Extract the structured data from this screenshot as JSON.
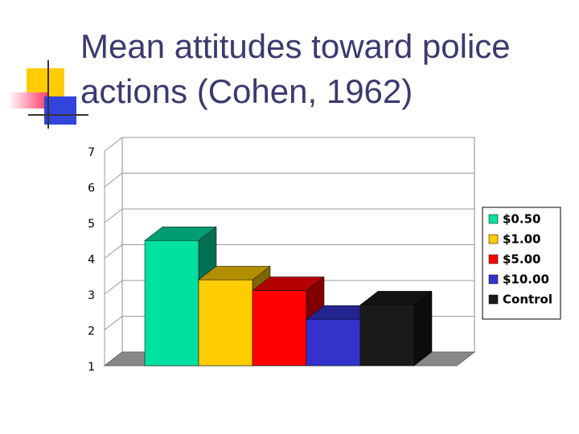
{
  "chart_data": {
    "type": "bar3d",
    "title": "Mean attitudes toward police actions (Cohen, 1962)",
    "ylim": [
      1,
      7
    ],
    "yticks": [
      1,
      2,
      3,
      4,
      5,
      6,
      7
    ],
    "grid": true,
    "legend": "right",
    "series": [
      {
        "name": "$0.50",
        "color": "#00e0a0",
        "values": [
          4.5
        ]
      },
      {
        "name": "$1.00",
        "color": "#ffcc00",
        "values": [
          3.4
        ]
      },
      {
        "name": "$5.00",
        "color": "#ff0000",
        "values": [
          3.1
        ]
      },
      {
        "name": "$10.00",
        "color": "#3333cc",
        "values": [
          2.3
        ]
      },
      {
        "name": "Control",
        "color": "#1a1a1a",
        "values": [
          2.7
        ]
      }
    ]
  }
}
